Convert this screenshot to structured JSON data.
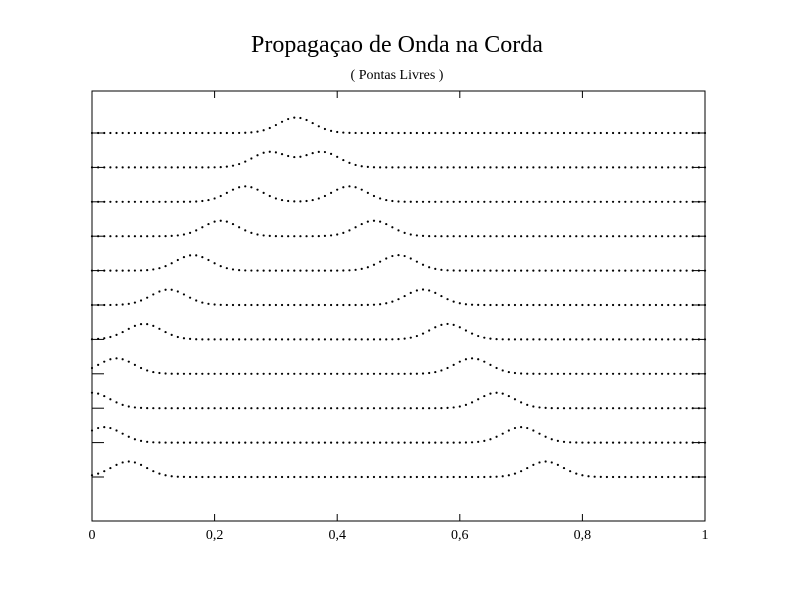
{
  "chart_data": {
    "type": "scatter",
    "title": "Propagaçao de Onda na Corda",
    "subtitle": "( Pontas Livres )",
    "xlabel": "",
    "ylabel": "",
    "xlim": [
      0,
      1
    ],
    "x_ticks": [
      "0",
      "0,2",
      "0,4",
      "0,6",
      "0,8",
      "1"
    ],
    "x_tick_values": [
      0,
      0.2,
      0.4,
      0.6,
      0.8,
      1
    ],
    "grid": false,
    "legend": "none",
    "point_spacing": 0.01,
    "pulse_half_width": 0.06,
    "pulse_amplitude": 0.5,
    "series": [
      {
        "pulses": [
          0.333
        ]
      },
      {
        "pulses": [
          0.29,
          0.375
        ]
      },
      {
        "pulses": [
          0.25,
          0.42
        ]
      },
      {
        "pulses": [
          0.21,
          0.46
        ]
      },
      {
        "pulses": [
          0.165,
          0.5
        ]
      },
      {
        "pulses": [
          0.125,
          0.54
        ]
      },
      {
        "pulses": [
          0.085,
          0.58
        ]
      },
      {
        "pulses": [
          0.04,
          0.62
        ]
      },
      {
        "pulses": [
          0.0,
          0.66
        ]
      },
      {
        "pulses": [
          0.02,
          0.7
        ]
      },
      {
        "pulses": [
          0.06,
          0.74
        ]
      }
    ]
  }
}
